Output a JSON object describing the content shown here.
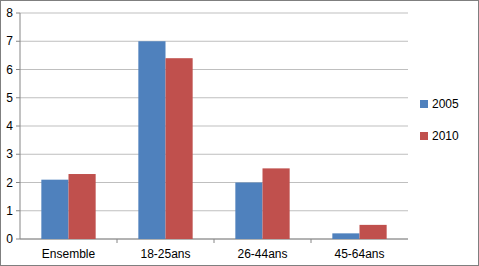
{
  "chart_data": {
    "type": "bar",
    "categories": [
      "Ensemble",
      "18-25ans",
      "26-44ans",
      "45-64ans"
    ],
    "series": [
      {
        "name": "2005",
        "color": "#4f81bd",
        "values": [
          2.1,
          7.0,
          2.0,
          0.2
        ]
      },
      {
        "name": "2010",
        "color": "#c0504d",
        "values": [
          2.3,
          6.4,
          2.5,
          0.5
        ]
      }
    ],
    "ylim": [
      0,
      8
    ],
    "yticks": [
      0,
      1,
      2,
      3,
      4,
      5,
      6,
      7,
      8
    ],
    "grid": true,
    "legend": "right"
  }
}
